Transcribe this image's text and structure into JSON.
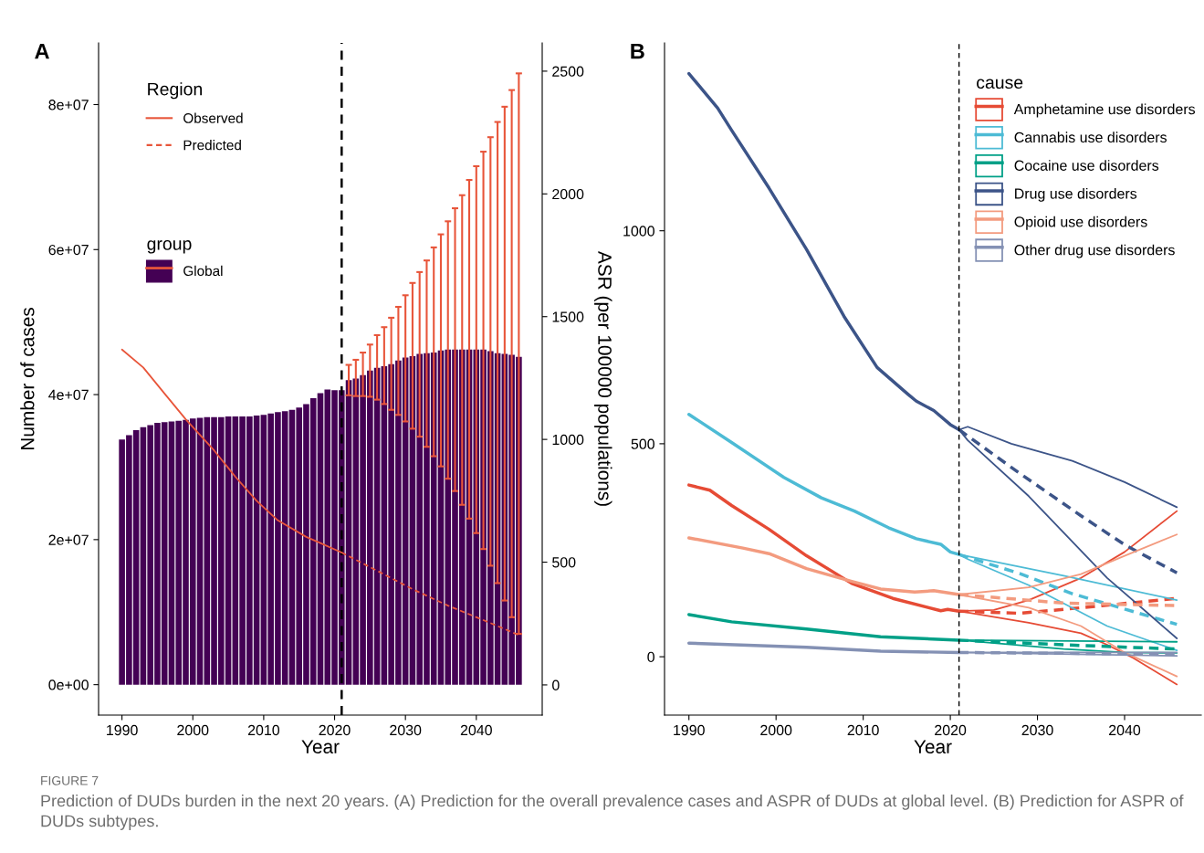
{
  "chart_data": [
    {
      "type": "bar",
      "title": "A",
      "xlabel": "Year",
      "ylabel": "Number of cases",
      "y2label": "ASR (per 100000 populations)",
      "legend_title": [
        "Region",
        "group"
      ],
      "legend": "top left",
      "grid": false,
      "xlim": [
        1986.7,
        2049.3
      ],
      "xticks": [
        1990,
        2000,
        2010,
        2020,
        2030,
        2040
      ],
      "ylim": [
        -4200000,
        88500000
      ],
      "yticks": [
        {
          "value": 0,
          "label": "0e+00"
        },
        {
          "value": 20000000,
          "label": "2e+07"
        },
        {
          "value": 40000000,
          "label": "4e+07"
        },
        {
          "value": 60000000,
          "label": "6e+07"
        },
        {
          "value": 80000000,
          "label": "8e+07"
        }
      ],
      "y2lim": [
        -123,
        2615
      ],
      "y2ticks": [
        0,
        500,
        1000,
        1500,
        2000,
        2500
      ],
      "ref_lines": [
        {
          "axis": "x",
          "value": 2021,
          "color": "#000000",
          "line_style": "dashed"
        }
      ],
      "x": [
        1990,
        1991,
        1992,
        1993,
        1994,
        1995,
        1996,
        1997,
        1998,
        1999,
        2000,
        2001,
        2002,
        2003,
        2004,
        2005,
        2006,
        2007,
        2008,
        2009,
        2010,
        2011,
        2012,
        2013,
        2014,
        2015,
        2016,
        2017,
        2018,
        2019,
        2020,
        2021,
        2022,
        2023,
        2024,
        2025,
        2026,
        2027,
        2028,
        2029,
        2030,
        2031,
        2032,
        2033,
        2034,
        2035,
        2036,
        2037,
        2038,
        2039,
        2040,
        2041,
        2042,
        2043,
        2044,
        2045,
        2046
      ],
      "series": [
        {
          "name": "Global",
          "type": "bar",
          "color": "#440154",
          "values": [
            33800000,
            34400000,
            35100000,
            35500000,
            35800000,
            36100000,
            36200000,
            36300000,
            36400000,
            36500000,
            36700000,
            36800000,
            36900000,
            36900000,
            36900000,
            37000000,
            37000000,
            37000000,
            37000000,
            37100000,
            37200000,
            37400000,
            37600000,
            37700000,
            37900000,
            38200000,
            38700000,
            39500000,
            40200000,
            40700000,
            40600000,
            40600000,
            42000000,
            42200000,
            42700000,
            43300000,
            43700000,
            43900000,
            44200000,
            44700000,
            45100000,
            45300000,
            45600000,
            45700000,
            45800000,
            46100000,
            46200000,
            46200000,
            46200000,
            46200000,
            46200000,
            46200000,
            46000000,
            45700000,
            45600000,
            45500000,
            45200000
          ],
          "errors": [
            null,
            null,
            null,
            null,
            null,
            null,
            null,
            null,
            null,
            null,
            null,
            null,
            null,
            null,
            null,
            null,
            null,
            null,
            null,
            null,
            null,
            null,
            null,
            null,
            null,
            null,
            null,
            null,
            null,
            null,
            null,
            null,
            [
              39900000,
              44100000
            ],
            [
              39800000,
              44800000
            ],
            [
              39800000,
              45800000
            ],
            [
              39700000,
              46900000
            ],
            [
              39300000,
              48200000
            ],
            [
              38700000,
              49300000
            ],
            [
              37900000,
              50600000
            ],
            [
              37200000,
              52100000
            ],
            [
              36300000,
              53700000
            ],
            [
              35300000,
              55400000
            ],
            [
              34200000,
              56900000
            ],
            [
              32800000,
              58500000
            ],
            [
              31500000,
              60300000
            ],
            [
              30100000,
              62100000
            ],
            [
              28400000,
              63900000
            ],
            [
              26700000,
              65700000
            ],
            [
              24800000,
              67500000
            ],
            [
              22900000,
              69600000
            ],
            [
              20900000,
              71500000
            ],
            [
              18700000,
              73500000
            ],
            [
              16400000,
              75500000
            ],
            [
              14000000,
              77600000
            ],
            [
              11600000,
              79700000
            ],
            [
              9300000,
              82000000
            ],
            [
              7000000,
              84300000
            ]
          ]
        },
        {
          "name": "Observed",
          "type": "line",
          "axis": "y2",
          "line_style": "solid",
          "color": "#e8553a",
          "x": [
            1990,
            1993,
            1996,
            1999,
            2003,
            2006,
            2009,
            2012,
            2016,
            2018,
            2021
          ],
          "values": [
            1366,
            1293,
            1187,
            1082,
            955,
            848,
            750,
            670,
            603,
            578,
            539
          ]
        },
        {
          "name": "Predicted",
          "type": "line",
          "axis": "y2",
          "line_style": "dashed",
          "color": "#e8553a",
          "x": [
            2021,
            2026,
            2031,
            2036,
            2041,
            2046
          ],
          "values": [
            539,
            465,
            390,
            323,
            264,
            203
          ]
        }
      ]
    },
    {
      "type": "line",
      "title": "B",
      "xlabel": "Year",
      "legend_title": "cause",
      "legend": "top right",
      "grid": false,
      "xlim": [
        1987.2,
        2048.8
      ],
      "xticks": [
        1990,
        2000,
        2010,
        2020,
        2030,
        2040
      ],
      "ylim": [
        -137,
        1441
      ],
      "yticks": [
        0,
        500,
        1000
      ],
      "ref_lines": [
        {
          "axis": "x",
          "value": 2021,
          "color": "#000000",
          "line_style": "dashed"
        }
      ],
      "series": [
        {
          "name": "Amphetamine use disorders",
          "color": "#e64b35",
          "line_style": "solid",
          "x": [
            1990,
            1992.4,
            1994.9,
            1999.2,
            2003.5,
            2008.7,
            2013.4,
            2018.9,
            2019.7,
            2021
          ],
          "values": [
            403,
            391,
            355,
            299,
            237,
            172,
            137,
            108,
            111,
            107
          ]
        },
        {
          "name": "Cannabis use disorders",
          "color": "#4dbbd5",
          "line_style": "solid",
          "x": [
            1990,
            1994.9,
            2000.9,
            2005.2,
            2009,
            2012.9,
            2016.1,
            2018.9,
            2020,
            2021
          ],
          "values": [
            569,
            503,
            421,
            373,
            342,
            303,
            277,
            264,
            246,
            240
          ]
        },
        {
          "name": "Cocaine use disorders",
          "color": "#00a087",
          "line_style": "solid",
          "x": [
            1990,
            1994.9,
            2003.5,
            2012,
            2021
          ],
          "values": [
            99,
            82,
            65,
            47,
            39
          ]
        },
        {
          "name": "Drug use disorders",
          "color": "#3c5488",
          "line_style": "solid",
          "x": [
            1990,
            1993.3,
            1994.9,
            1999.2,
            2003.5,
            2007.8,
            2011.6,
            2015.1,
            2016.1,
            2018.1,
            2020,
            2021
          ],
          "values": [
            1369,
            1288,
            1236,
            1100,
            956,
            799,
            679,
            617,
            600,
            578,
            545,
            533
          ]
        },
        {
          "name": "Opioid use disorders",
          "color": "#f39b7f",
          "line_style": "solid",
          "x": [
            1990,
            1996.2,
            1999.2,
            2003.5,
            2008.7,
            2012,
            2015.9,
            2018.1,
            2021
          ],
          "values": [
            279,
            255,
            242,
            207,
            177,
            159,
            152,
            155,
            146
          ]
        },
        {
          "name": "Other drug use disorders",
          "color": "#8491b4",
          "line_style": "solid",
          "x": [
            1990,
            2003.5,
            2012,
            2021
          ],
          "values": [
            32,
            22,
            13,
            10
          ]
        },
        {
          "color": "#e64b35",
          "line_style": "dashed",
          "x": [
            2021,
            2028,
            2035,
            2046
          ],
          "values": [
            107,
            102,
            115,
            137
          ]
        },
        {
          "color": "#e64b35",
          "line_style": "solid",
          "x": [
            2021,
            2025,
            2029,
            2035,
            2040,
            2046
          ],
          "values": [
            107,
            110,
            133,
            185,
            246,
            342
          ]
        },
        {
          "color": "#e64b35",
          "line_style": "solid",
          "x": [
            2021,
            2029,
            2035,
            2038,
            2041,
            2046
          ],
          "values": [
            107,
            80,
            55,
            28,
            -3,
            -65
          ]
        },
        {
          "color": "#4dbbd5",
          "line_style": "dashed",
          "x": [
            2021,
            2028,
            2034,
            2046
          ],
          "values": [
            240,
            195,
            148,
            76
          ]
        },
        {
          "color": "#4dbbd5",
          "line_style": "solid",
          "x": [
            2021,
            2033,
            2046
          ],
          "values": [
            240,
            190,
            133
          ]
        },
        {
          "color": "#4dbbd5",
          "line_style": "solid",
          "x": [
            2021,
            2022,
            2029,
            2038,
            2046
          ],
          "values": [
            240,
            229,
            168,
            72,
            15
          ]
        },
        {
          "color": "#00a087",
          "line_style": "dashed",
          "x": [
            2021,
            2033,
            2046
          ],
          "values": [
            39,
            28,
            18
          ]
        },
        {
          "color": "#00a087",
          "line_style": "solid",
          "x": [
            2021,
            2046
          ],
          "values": [
            39,
            35
          ]
        },
        {
          "color": "#00a087",
          "line_style": "solid",
          "x": [
            2021,
            2033,
            2040,
            2046
          ],
          "values": [
            39,
            18,
            10,
            9
          ]
        },
        {
          "color": "#3c5488",
          "line_style": "dashed",
          "x": [
            2021,
            2028,
            2035,
            2040,
            2046
          ],
          "values": [
            533,
            430,
            331,
            263,
            197
          ]
        },
        {
          "color": "#3c5488",
          "line_style": "solid",
          "x": [
            2021,
            2022,
            2027,
            2034,
            2040,
            2046
          ],
          "values": [
            533,
            540,
            500,
            460,
            410,
            351
          ]
        },
        {
          "color": "#3c5488",
          "line_style": "solid",
          "x": [
            2021,
            2022,
            2029,
            2038,
            2046
          ],
          "values": [
            533,
            508,
            377,
            185,
            43
          ]
        },
        {
          "color": "#f39b7f",
          "line_style": "dashed",
          "x": [
            2021,
            2033,
            2046
          ],
          "values": [
            146,
            126,
            120
          ]
        },
        {
          "color": "#f39b7f",
          "line_style": "solid",
          "x": [
            2021,
            2029,
            2035,
            2040,
            2046
          ],
          "values": [
            146,
            163,
            194,
            237,
            287
          ]
        },
        {
          "color": "#f39b7f",
          "line_style": "solid",
          "x": [
            2021,
            2029,
            2035,
            2040,
            2046
          ],
          "values": [
            146,
            115,
            72,
            10,
            -46
          ]
        },
        {
          "color": "#8491b4",
          "line_style": "dashed",
          "x": [
            2021,
            2046
          ],
          "values": [
            10,
            6
          ]
        },
        {
          "color": "#8491b4",
          "line_style": "solid",
          "x": [
            2021,
            2046
          ],
          "values": [
            10,
            10
          ]
        },
        {
          "color": "#8491b4",
          "line_style": "solid",
          "x": [
            2021,
            2046
          ],
          "values": [
            10,
            2
          ]
        }
      ],
      "annotations": [
        "FIGURE 7",
        "Prediction of DUDs burden in the next 20 years. (A) Prediction for the overall prevalence cases and ASPR of DUDs at global level. (B) Prediction for ASPR of DUDs subtypes."
      ]
    }
  ]
}
